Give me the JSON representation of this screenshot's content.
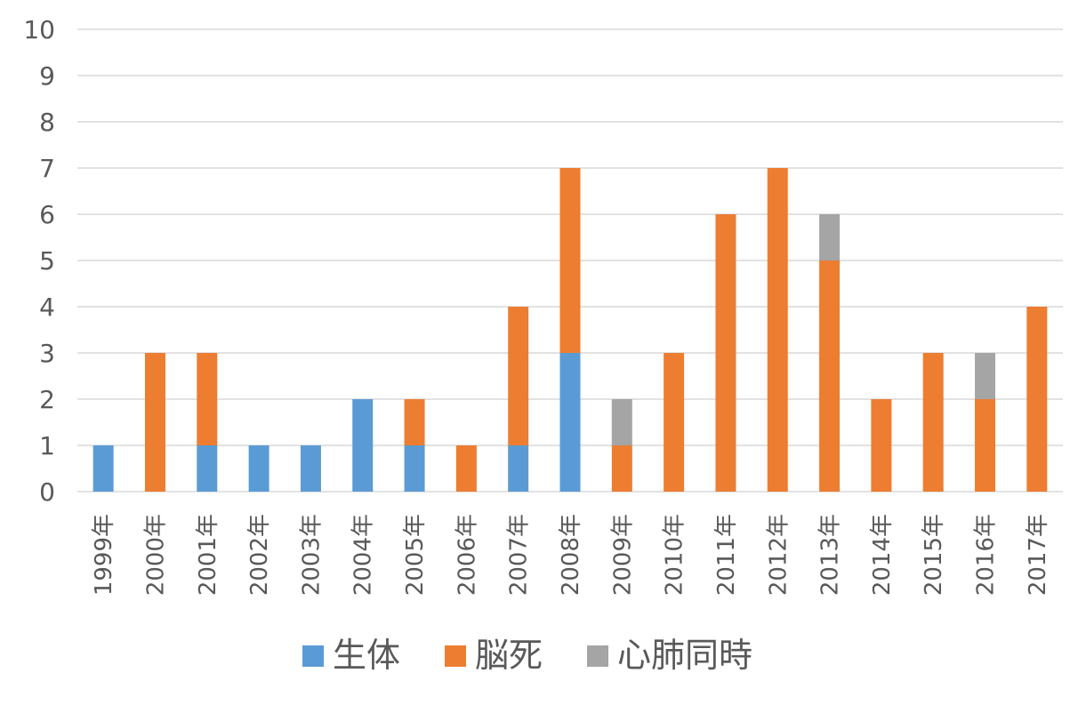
{
  "chart_data": {
    "type": "bar",
    "stacked": true,
    "title": "",
    "xlabel": "",
    "ylabel": "",
    "ylim": [
      0,
      10
    ],
    "yticks": [
      0,
      1,
      2,
      3,
      4,
      5,
      6,
      7,
      8,
      9,
      10
    ],
    "grid": true,
    "legend_position": "bottom",
    "categories": [
      "1999年",
      "2000年",
      "2001年",
      "2002年",
      "2003年",
      "2004年",
      "2005年",
      "2006年",
      "2007年",
      "2008年",
      "2009年",
      "2010年",
      "2011年",
      "2012年",
      "2013年",
      "2014年",
      "2015年",
      "2016年",
      "2017年"
    ],
    "series": [
      {
        "name": "生体",
        "color": "#5b9bd5",
        "values": [
          1,
          0,
          1,
          1,
          1,
          2,
          1,
          0,
          1,
          3,
          0,
          0,
          0,
          0,
          0,
          0,
          0,
          0,
          0
        ]
      },
      {
        "name": "脳死",
        "color": "#ed7d31",
        "values": [
          0,
          3,
          2,
          0,
          0,
          0,
          1,
          1,
          3,
          4,
          1,
          3,
          6,
          7,
          5,
          2,
          3,
          2,
          4
        ]
      },
      {
        "name": "心肺同時",
        "color": "#a5a5a5",
        "values": [
          0,
          0,
          0,
          0,
          0,
          0,
          0,
          0,
          0,
          0,
          1,
          0,
          0,
          0,
          1,
          0,
          0,
          1,
          0
        ]
      }
    ]
  }
}
